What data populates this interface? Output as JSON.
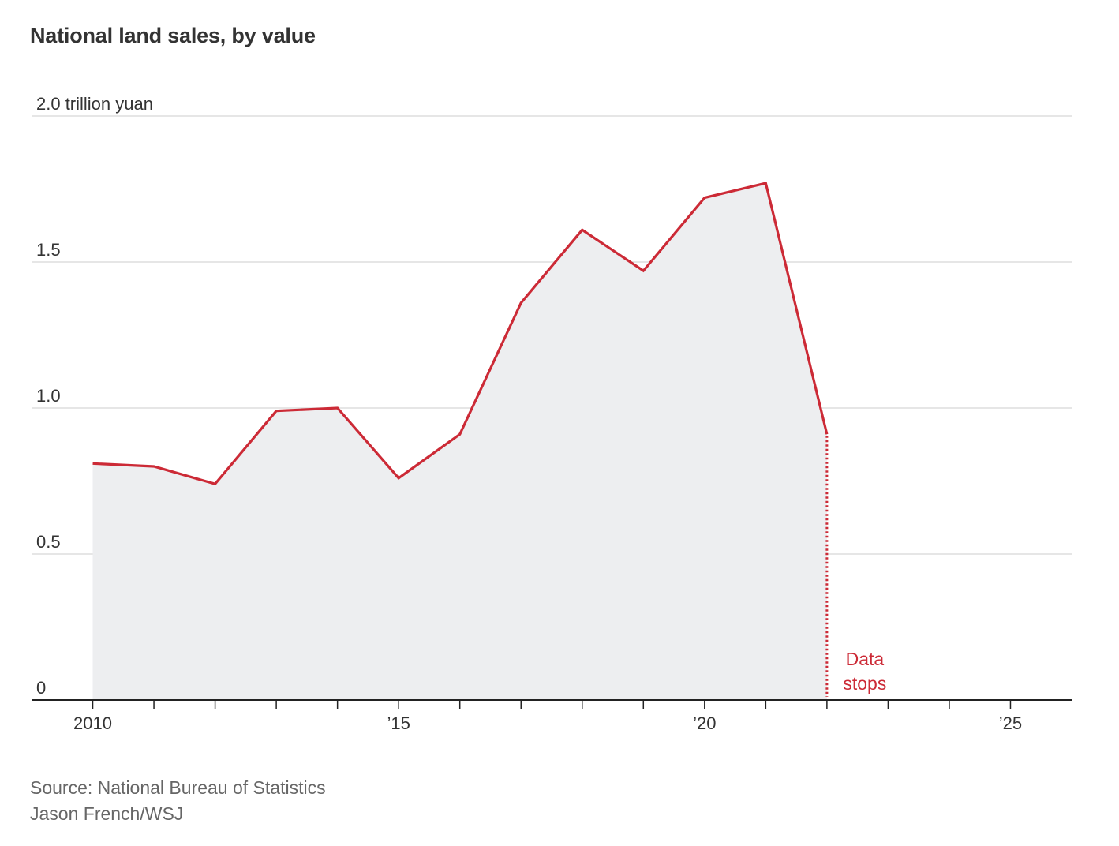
{
  "chart_data": {
    "type": "area",
    "title": "National land sales, by value",
    "unit_label": "trillion yuan",
    "x": [
      2010,
      2011,
      2012,
      2013,
      2014,
      2015,
      2016,
      2017,
      2018,
      2019,
      2020,
      2021,
      2022
    ],
    "values": [
      0.81,
      0.8,
      0.74,
      0.99,
      1.0,
      0.76,
      0.91,
      1.36,
      1.61,
      1.47,
      1.72,
      1.77,
      0.91
    ],
    "xlim": [
      2009,
      2026
    ],
    "ylim": [
      0,
      2.0
    ],
    "y_ticks": [
      0,
      0.5,
      1.0,
      1.5,
      2.0
    ],
    "y_tick_labels": [
      "0",
      "0.5",
      "1.0",
      "1.5",
      "2.0 trillion yuan"
    ],
    "x_ticks": [
      2010,
      2011,
      2012,
      2013,
      2014,
      2015,
      2016,
      2017,
      2018,
      2019,
      2020,
      2021,
      2022,
      2023,
      2024,
      2025
    ],
    "x_tick_labels": {
      "2010": "2010",
      "2015": "’15",
      "2020": "’20",
      "2025": "’25"
    },
    "annotation": {
      "x": 2022,
      "lines": [
        "Data",
        "stops"
      ]
    },
    "grid": true,
    "colors": {
      "line": "#cc2a36",
      "area": "#edeef0",
      "grid": "#dddddd",
      "axis": "#222222",
      "text": "#333333",
      "footer": "#666666"
    }
  },
  "footer": {
    "source": "Source: National Bureau of Statistics",
    "credit": "Jason French/WSJ"
  }
}
